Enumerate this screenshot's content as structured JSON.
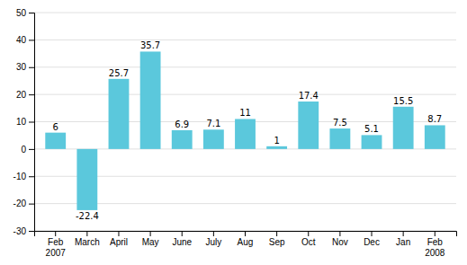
{
  "chart_data": {
    "type": "bar",
    "categories": [
      "Feb\n2007",
      "March",
      "April",
      "May",
      "June",
      "July",
      "Aug",
      "Sep",
      "Oct",
      "Nov",
      "Dec",
      "Jan",
      "Feb\n2008"
    ],
    "values": [
      6,
      -22.4,
      25.7,
      35.7,
      6.9,
      7.1,
      11,
      1,
      17.4,
      7.5,
      5.1,
      15.5,
      8.7
    ],
    "color": "#5BC8DC",
    "ylim": [
      -30,
      50
    ],
    "yticks": [
      -30,
      -20,
      -10,
      0,
      10,
      20,
      30,
      40,
      50
    ],
    "grid": true,
    "data_labels": true
  }
}
